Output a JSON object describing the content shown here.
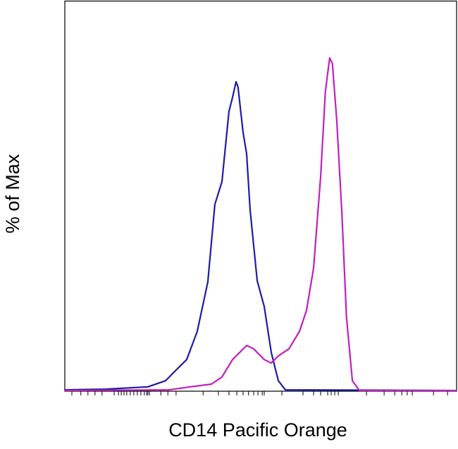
{
  "chart_data": {
    "type": "line",
    "x_label": "CD14 Pacific Orange",
    "y_label": "% of Max",
    "xlim": [
      0,
      100
    ],
    "ylim": [
      0,
      116
    ],
    "xticks": [
      1.8,
      4.1,
      5.9,
      7.7,
      9.5,
      12.6,
      13.7,
      14.4,
      15.1,
      15.8,
      16.7,
      17.6,
      18.5,
      19.4,
      20.3,
      20.9,
      21.2,
      21.6,
      24.5,
      26.3,
      28.4,
      35.3,
      39.2,
      41.9,
      43.9,
      45.5,
      46.9,
      48.2,
      49.3,
      50.4,
      50.9,
      55.4,
      60.8,
      63.5,
      65.3,
      67.1,
      68.0,
      68.9,
      69.8,
      77.0,
      81.5,
      84.2,
      86.0,
      87.4,
      88.7,
      94.1,
      97.7
    ],
    "series": [
      {
        "name": "blue",
        "color": "#1c1ca8",
        "x": [
          0,
          10.4,
          21.2,
          25.7,
          28.4,
          31.1,
          33.8,
          36.5,
          38.3,
          40.1,
          41.9,
          42.8,
          43.7,
          44.2,
          45.5,
          46.4,
          47.3,
          49.1,
          50.9,
          52.7,
          54.5,
          56.3,
          100
        ],
        "values": [
          0.4,
          0.6,
          1.3,
          3.1,
          6.3,
          9.4,
          17.8,
          32.5,
          55.6,
          62.3,
          83.3,
          87.4,
          92.1,
          90.6,
          77.0,
          70.7,
          53.9,
          32.9,
          25.2,
          11.5,
          3.1,
          0.4,
          0.2
        ]
      },
      {
        "name": "magenta",
        "color": "#c01fc0",
        "x": [
          0,
          26.6,
          32.0,
          37.4,
          40.1,
          42.8,
          44.6,
          46.4,
          48.2,
          50.9,
          52.7,
          54.5,
          57.2,
          59.9,
          61.7,
          63.5,
          65.3,
          66.5,
          67.6,
          68.3,
          69.4,
          70.7,
          71.9,
          73.4,
          75.2,
          100
        ],
        "values": [
          0.2,
          0.4,
          1.3,
          2.1,
          4.2,
          9.4,
          11.5,
          13.6,
          12.6,
          9.4,
          8.4,
          10.5,
          12.6,
          17.8,
          24.1,
          36.7,
          63.9,
          89.1,
          99.2,
          97.5,
          80.8,
          53.5,
          22.0,
          3.1,
          0.2,
          0.2
        ]
      }
    ]
  }
}
